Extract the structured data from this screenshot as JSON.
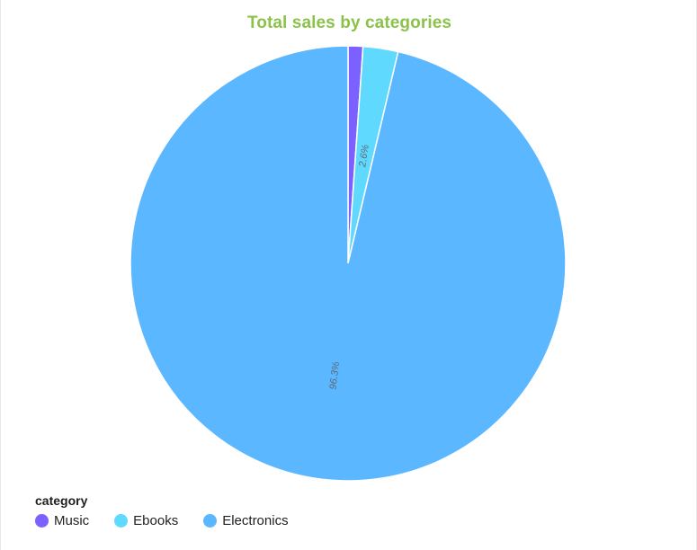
{
  "title": "Total sales by categories",
  "title_color": "#8bc34a",
  "legend": {
    "title": "category",
    "items": [
      {
        "label": "Music",
        "color": "#7b61ff"
      },
      {
        "label": "Ebooks",
        "color": "#60d9ff"
      },
      {
        "label": "Electronics",
        "color": "#5bb7ff"
      }
    ]
  },
  "chart_data": {
    "type": "pie",
    "categories": [
      "Music",
      "Ebooks",
      "Electronics"
    ],
    "values": [
      1.1,
      2.6,
      96.3
    ],
    "unit": "%",
    "slice_labels": [
      "",
      "2.6%",
      "96.3%"
    ],
    "colors": [
      "#7b61ff",
      "#60d9ff",
      "#5bb7ff"
    ],
    "legend_placement": "bottom-left",
    "start_angle": "top, clockwise"
  }
}
